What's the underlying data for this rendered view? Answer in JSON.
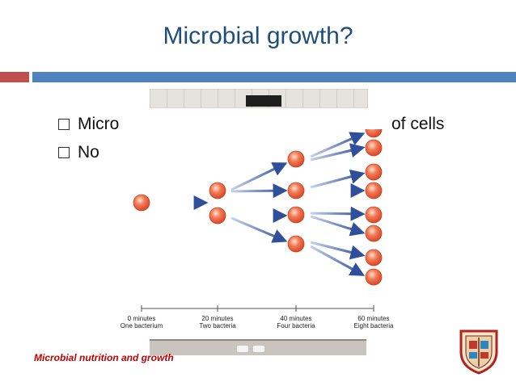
{
  "slide": {
    "title": "Microbial growth?",
    "bullets": [
      {
        "visible_prefix": "Micro",
        "visible_suffix": "of cells"
      },
      {
        "visible_prefix": "No"
      }
    ],
    "footer": "Microbial nutrition and growth"
  },
  "diagram": {
    "labels": [
      {
        "time": "0 minutes",
        "desc": "One bacterium"
      },
      {
        "time": "20 minutes",
        "desc": "Two bacteria"
      },
      {
        "time": "40 minutes",
        "desc": "Four bacteria"
      },
      {
        "time": "60 minutes",
        "desc": "Eight bacteria"
      }
    ],
    "cell_counts": [
      1,
      2,
      4,
      8
    ]
  },
  "colors": {
    "title": "#1f4e79",
    "accent_red": "#c0504d",
    "accent_blue": "#4f81bd",
    "cell": "#e8603c",
    "arrow": "#3b5ea8",
    "footer": "#c00000"
  },
  "icons": [
    "checkbox-bullet-icon",
    "college-crest-logo"
  ]
}
